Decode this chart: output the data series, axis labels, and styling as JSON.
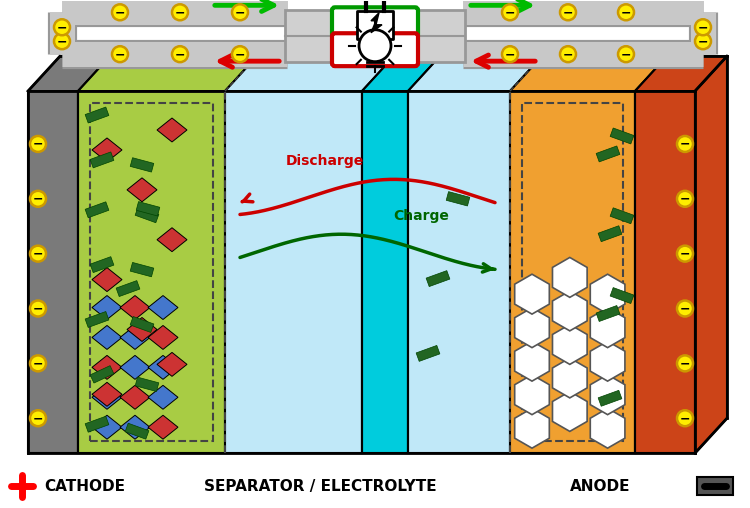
{
  "fig_width": 7.5,
  "fig_height": 5.08,
  "dpi": 100,
  "bg_color": "#ffffff",
  "colors": {
    "cathode_gray": "#7a7a7a",
    "cathode_green": "#a8cc44",
    "separator_light": "#c0e8f8",
    "separator_cyan": "#00ccdd",
    "anode_orange": "#f0a030",
    "anode_red": "#cc4418",
    "wire_gray": "#c8c8c8",
    "wire_border": "#989898",
    "green_arrow": "#00bb00",
    "red_arrow": "#dd0000",
    "charge_green": "#006600",
    "discharge_red": "#cc0000",
    "electron_yellow": "#ffee00",
    "electron_border": "#cc9900",
    "box_bg": "#d0d0d0",
    "plug_border": "#009900",
    "bulb_border": "#cc0000",
    "dashed_border": "#444444",
    "crystal_blue": "#4477cc",
    "crystal_red": "#cc3333",
    "crystal_green": "#226622",
    "hex_fill": "#ffffff",
    "hex_border": "#555555"
  },
  "labels": {
    "cathode": "CATHODE",
    "separator": "SEPARATOR / ELECTROLYTE",
    "anode": "ANODE",
    "charge": "Charge",
    "discharge": "Discharge"
  }
}
